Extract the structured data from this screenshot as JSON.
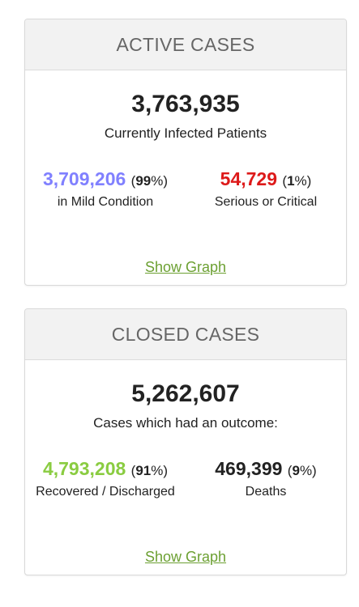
{
  "active": {
    "header": "ACTIVE CASES",
    "total": "3,763,935",
    "caption": "Currently Infected Patients",
    "mild": {
      "value": "3,709,206",
      "pct_open": "(",
      "pct_value": "99",
      "pct_close": "%)",
      "label": "in Mild Condition",
      "color": "#8080ff"
    },
    "serious": {
      "value": "54,729",
      "pct_open": "(",
      "pct_value": "1",
      "pct_close": "%)",
      "label": "Serious or Critical",
      "color": "#dd1a1a"
    },
    "link": "Show Graph"
  },
  "closed": {
    "header": "CLOSED CASES",
    "total": "5,262,607",
    "caption": "Cases which had an outcome:",
    "recovered": {
      "value": "4,793,208",
      "pct_open": "(",
      "pct_value": "91",
      "pct_close": "%)",
      "label": "Recovered / Discharged",
      "color": "#8acc41"
    },
    "deaths": {
      "value": "469,399",
      "pct_open": "(",
      "pct_value": "9",
      "pct_close": "%)",
      "label": "Deaths",
      "color": "#222222"
    },
    "link": "Show Graph"
  },
  "colors": {
    "link": "#6ca032",
    "header_bg": "#f2f2f2",
    "border": "#d9d9d9"
  }
}
